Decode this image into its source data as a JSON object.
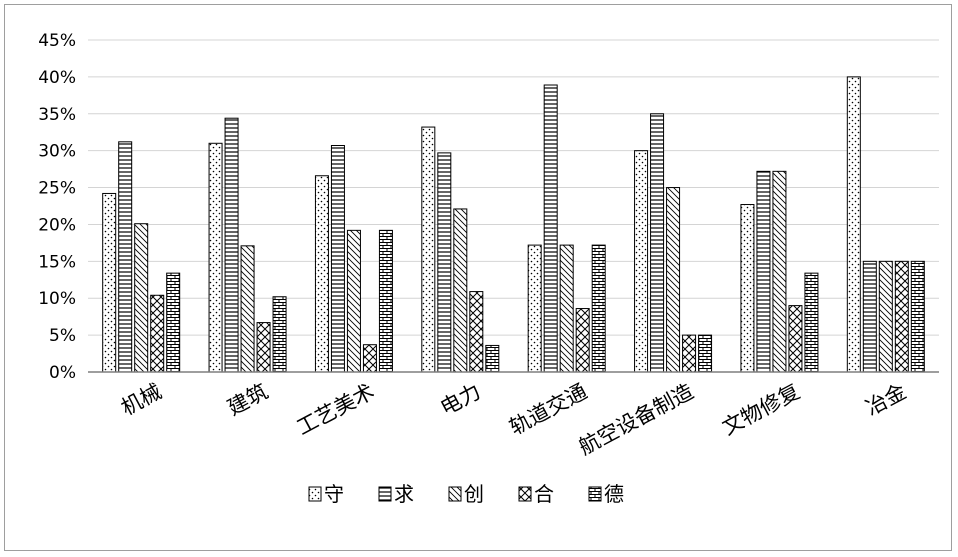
{
  "chart_data": {
    "type": "bar",
    "title": "",
    "xlabel": "",
    "ylabel": "",
    "ylim": [
      0,
      45
    ],
    "y_ticks": [
      "0%",
      "5%",
      "10%",
      "15%",
      "20%",
      "25%",
      "30%",
      "35%",
      "40%",
      "45%"
    ],
    "grid": "horizontal",
    "legend_position": "bottom",
    "categories": [
      "机械",
      "建筑",
      "工艺美术",
      "电力",
      "轨道交通",
      "航空设备制造",
      "文物修复",
      "冶金"
    ],
    "series": [
      {
        "name": "守",
        "pattern": "dots",
        "values": [
          24.2,
          31.0,
          26.6,
          33.2,
          17.2,
          30.0,
          22.7,
          40.0
        ]
      },
      {
        "name": "求",
        "pattern": "hlines",
        "values": [
          31.2,
          34.4,
          30.7,
          29.7,
          38.9,
          35.0,
          27.2,
          15.0
        ]
      },
      {
        "name": "创",
        "pattern": "diagonal",
        "values": [
          20.1,
          17.1,
          19.2,
          22.1,
          17.2,
          25.0,
          27.2,
          15.0
        ]
      },
      {
        "name": "合",
        "pattern": "crosshatch",
        "values": [
          10.4,
          6.7,
          3.7,
          10.9,
          8.6,
          5.0,
          9.0,
          15.0
        ]
      },
      {
        "name": "德",
        "pattern": "brick",
        "values": [
          13.4,
          10.2,
          19.2,
          3.6,
          17.2,
          5.0,
          13.4,
          15.0
        ]
      }
    ]
  }
}
